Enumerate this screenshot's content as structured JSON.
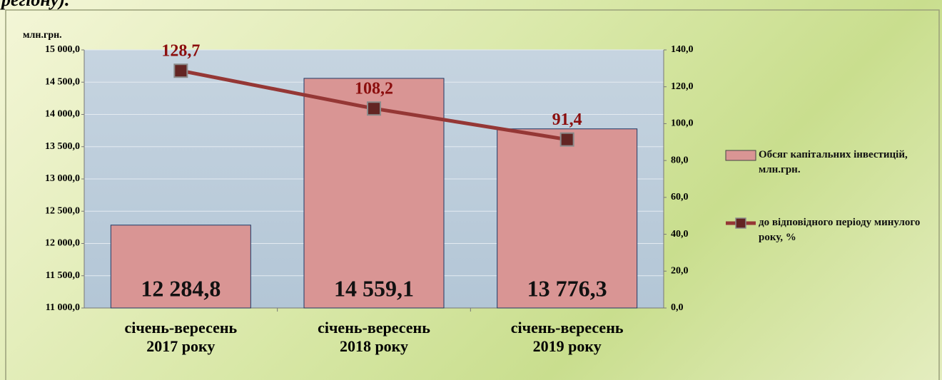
{
  "caption_fragment": "регіону).",
  "chart_data": {
    "type": "bar",
    "y_axis_label": "млн.грн.",
    "categories": [
      [
        "січень-вересень",
        "2017 року"
      ],
      [
        "січень-вересень",
        "2018 року"
      ],
      [
        "січень-вересень",
        "2019 року"
      ]
    ],
    "series": [
      {
        "name": "Обсяг капітальних інвестицій, млн.грн.",
        "type": "bar",
        "color": "#d99594",
        "values": [
          12284.8,
          14559.1,
          13776.3
        ],
        "value_labels": [
          "12 284,8",
          "14 559,1",
          "13 776,3"
        ]
      },
      {
        "name": "до відповідного періоду минулого року, %",
        "type": "line",
        "axis": "y2",
        "color": "#953735",
        "values": [
          128.7,
          108.2,
          91.4
        ],
        "value_labels": [
          "128,7",
          "108,2",
          "91,4"
        ]
      }
    ],
    "ylim": [
      11000,
      15000
    ],
    "yticks": [
      {
        "value": 11000,
        "label": "11 000,0"
      },
      {
        "value": 11500,
        "label": "11 500,0"
      },
      {
        "value": 12000,
        "label": "12 000,0"
      },
      {
        "value": 12500,
        "label": "12 500,0"
      },
      {
        "value": 13000,
        "label": "13 000,0"
      },
      {
        "value": 13500,
        "label": "13 500,0"
      },
      {
        "value": 14000,
        "label": "14 000,0"
      },
      {
        "value": 14500,
        "label": "14 500,0"
      },
      {
        "value": 15000,
        "label": "15 000,0"
      }
    ],
    "y2lim": [
      0,
      140
    ],
    "y2ticks": [
      {
        "value": 0,
        "label": "0,0"
      },
      {
        "value": 20,
        "label": "20,0"
      },
      {
        "value": 40,
        "label": "40,0"
      },
      {
        "value": 60,
        "label": "60,0"
      },
      {
        "value": 80,
        "label": "80,0"
      },
      {
        "value": 100,
        "label": "100,0"
      },
      {
        "value": 120,
        "label": "120,0"
      },
      {
        "value": 140,
        "label": "140,0"
      }
    ],
    "grid": true,
    "legend": "right"
  }
}
